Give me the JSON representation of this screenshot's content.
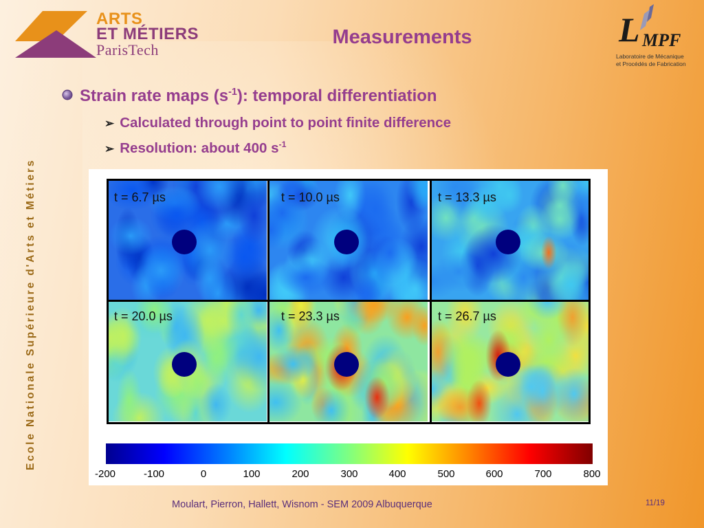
{
  "header": {
    "logo_left": {
      "line1": "ARTS",
      "line2": "ET MÉTIERS",
      "line3": "ParisTech"
    },
    "title": "Measurements",
    "logo_right": {
      "letter": "L",
      "letters": "MPF",
      "sub1": "Laboratoire de Mécanique",
      "sub2": "et Procédés de Fabrication"
    }
  },
  "side_text": "Ecole Nationale Supérieure d'Arts et Métiers",
  "bullets": {
    "main": {
      "text": "Strain rate maps (s",
      "sup": "-1",
      "tail": "): temporal differentiation"
    },
    "sub1": {
      "text": "Calculated through point to point finite difference"
    },
    "sub2": {
      "text": "Resolution: about 400 s",
      "sup": "-1"
    }
  },
  "figure": {
    "panels": [
      {
        "label": "t = 6.7 µs"
      },
      {
        "label": "t = 10.0 µs"
      },
      {
        "label": "t = 13.3 µs"
      },
      {
        "label": "t = 20.0 µs"
      },
      {
        "label": "t = 23.3 µs"
      },
      {
        "label": "t = 26.7 µs"
      }
    ],
    "colorbar_ticks": [
      "-200",
      "-100",
      "0",
      "100",
      "200",
      "300",
      "400",
      "500",
      "600",
      "700",
      "800"
    ]
  },
  "footer": {
    "citation": "Moulart, Pierron, Hallett, Wisnom - SEM 2009 Albuquerque",
    "page": "11/19"
  },
  "colors": {
    "title": "#953d8e",
    "accent_orange": "#e8911a",
    "side_text": "#9b6a18"
  }
}
